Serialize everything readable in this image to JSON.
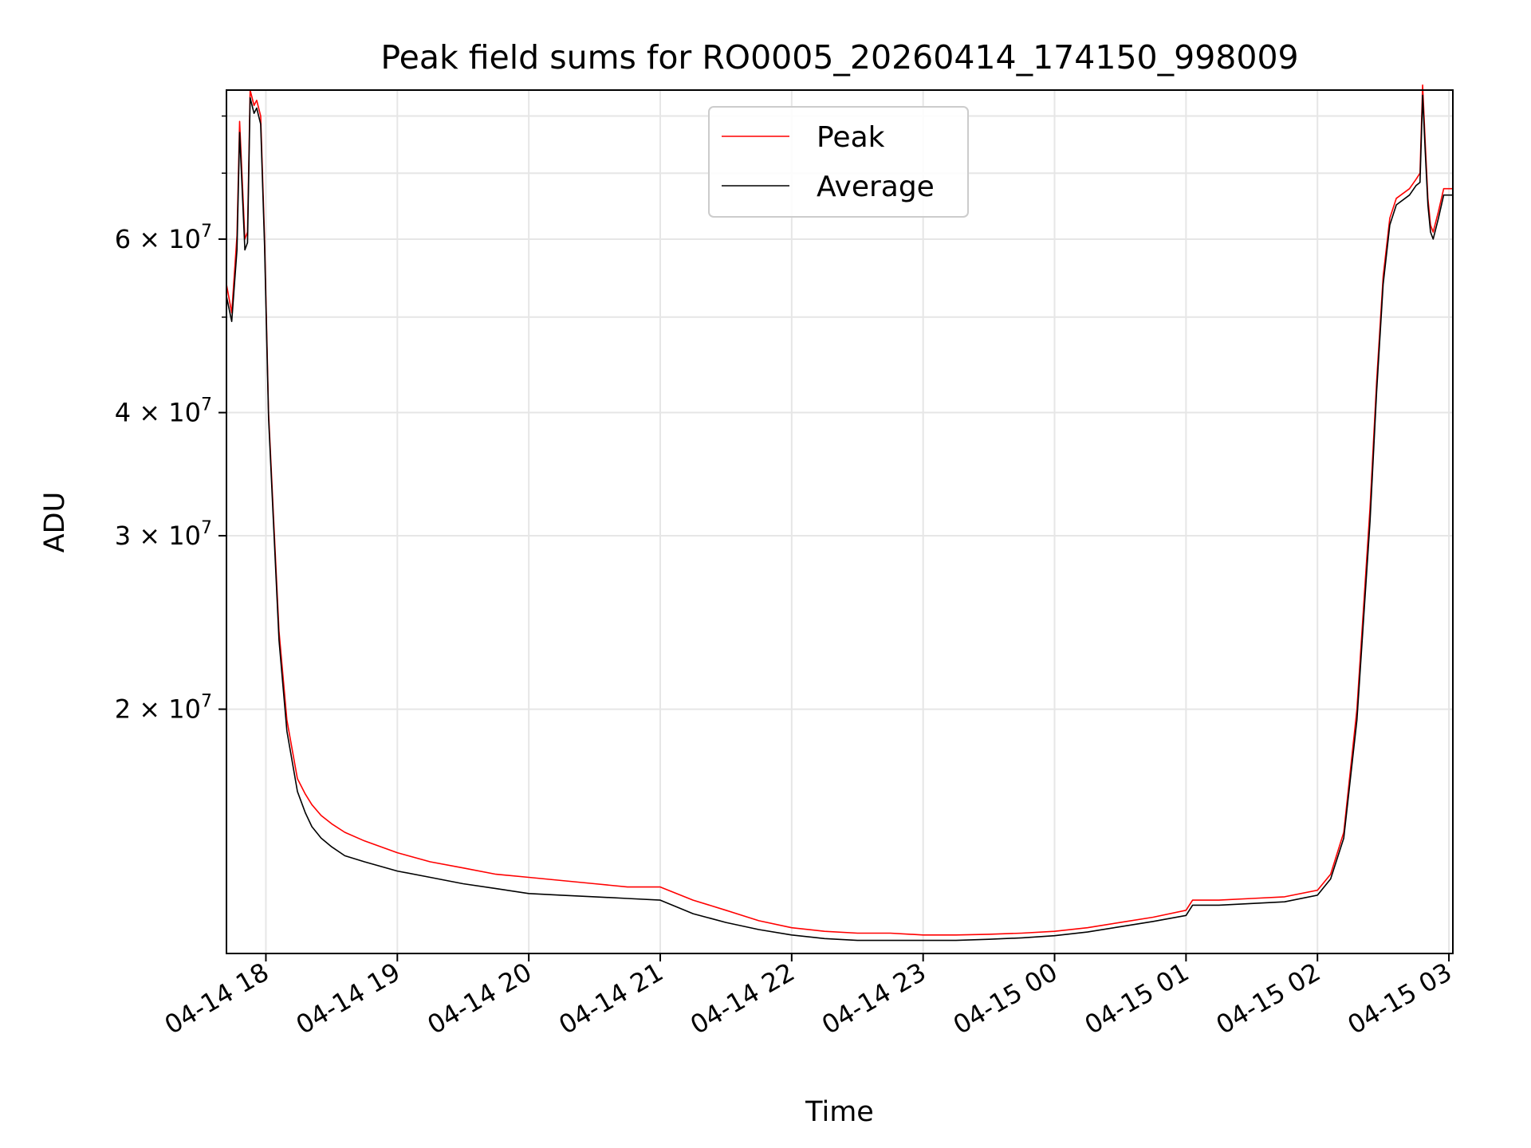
{
  "chart_data": {
    "type": "line",
    "title": "Peak field sums for RO0005_20260414_174150_998009",
    "xlabel": "Time",
    "ylabel": "ADU",
    "y_scale": "log",
    "ylim": [
      11300000,
      85000000
    ],
    "x_unit": "hours since 04-14 00:00",
    "xlim": [
      17.7,
      27.03
    ],
    "grid": true,
    "legend_position": "upper center",
    "x_ticks": [
      {
        "value": 18,
        "label": "04-14 18"
      },
      {
        "value": 19,
        "label": "04-14 19"
      },
      {
        "value": 20,
        "label": "04-14 20"
      },
      {
        "value": 21,
        "label": "04-14 21"
      },
      {
        "value": 22,
        "label": "04-14 22"
      },
      {
        "value": 23,
        "label": "04-14 23"
      },
      {
        "value": 24,
        "label": "04-15 00"
      },
      {
        "value": 25,
        "label": "04-15 01"
      },
      {
        "value": 26,
        "label": "04-15 02"
      },
      {
        "value": 27,
        "label": "04-15 03"
      }
    ],
    "y_ticks_major": [
      {
        "value": 20000000,
        "mantissa": "2",
        "exponent": "7"
      },
      {
        "value": 30000000,
        "mantissa": "3",
        "exponent": "7"
      },
      {
        "value": 40000000,
        "mantissa": "4",
        "exponent": "7"
      },
      {
        "value": 60000000,
        "mantissa": "6",
        "exponent": "7"
      }
    ],
    "y_ticks_minor": [
      50000000,
      70000000,
      80000000
    ],
    "tick_times_symbol": "×",
    "tick_base": "10",
    "series": [
      {
        "name": "Peak",
        "color": "#ff0000",
        "x": [
          17.7,
          17.74,
          17.78,
          17.8,
          17.84,
          17.86,
          17.88,
          17.91,
          17.93,
          17.96,
          17.99,
          18.02,
          18.06,
          18.1,
          18.16,
          18.24,
          18.3,
          18.35,
          18.42,
          18.5,
          18.6,
          18.75,
          19.0,
          19.25,
          19.5,
          19.75,
          20.0,
          20.25,
          20.5,
          20.75,
          21.0,
          21.25,
          21.5,
          21.75,
          22.0,
          22.25,
          22.5,
          22.75,
          23.0,
          23.25,
          23.5,
          23.75,
          24.0,
          24.25,
          24.5,
          24.75,
          25.0,
          25.05,
          25.25,
          25.5,
          25.75,
          26.0,
          26.1,
          26.2,
          26.3,
          26.4,
          26.45,
          26.5,
          26.55,
          26.6,
          26.7,
          26.75,
          26.78,
          26.8,
          26.82,
          26.84,
          26.86,
          26.88,
          26.92,
          26.96,
          27.03
        ],
        "y": [
          54000000,
          50500000,
          60500000,
          79000000,
          60000000,
          61000000,
          85000000,
          82000000,
          83000000,
          80000000,
          60000000,
          40000000,
          31000000,
          24000000,
          19500000,
          17000000,
          16400000,
          16000000,
          15600000,
          15300000,
          15000000,
          14700000,
          14300000,
          14000000,
          13800000,
          13600000,
          13500000,
          13400000,
          13300000,
          13200000,
          13200000,
          12800000,
          12500000,
          12200000,
          12000000,
          11900000,
          11850000,
          11850000,
          11800000,
          11800000,
          11820000,
          11850000,
          11900000,
          12000000,
          12150000,
          12300000,
          12500000,
          12800000,
          12800000,
          12850000,
          12900000,
          13100000,
          13600000,
          15000000,
          20000000,
          32000000,
          43000000,
          55000000,
          63000000,
          66000000,
          67500000,
          69000000,
          70000000,
          86000000,
          75000000,
          66000000,
          62000000,
          61000000,
          64000000,
          67500000,
          67500000
        ]
      },
      {
        "name": "Average",
        "color": "#000000",
        "x": [
          17.7,
          17.74,
          17.78,
          17.8,
          17.84,
          17.86,
          17.88,
          17.91,
          17.93,
          17.96,
          17.99,
          18.02,
          18.06,
          18.1,
          18.16,
          18.24,
          18.3,
          18.35,
          18.42,
          18.5,
          18.6,
          18.75,
          19.0,
          19.25,
          19.5,
          19.75,
          20.0,
          20.25,
          20.5,
          20.75,
          21.0,
          21.25,
          21.5,
          21.75,
          22.0,
          22.25,
          22.5,
          22.75,
          23.0,
          23.25,
          23.5,
          23.75,
          24.0,
          24.25,
          24.5,
          24.75,
          25.0,
          25.05,
          25.25,
          25.5,
          25.75,
          26.0,
          26.1,
          26.2,
          26.3,
          26.4,
          26.45,
          26.5,
          26.55,
          26.6,
          26.7,
          26.75,
          26.78,
          26.8,
          26.82,
          26.84,
          26.86,
          26.88,
          26.92,
          26.96,
          27.03
        ],
        "y": [
          52500000,
          49500000,
          58500000,
          77000000,
          58500000,
          59500000,
          83500000,
          80500000,
          81500000,
          78500000,
          59000000,
          39500000,
          30500000,
          23500000,
          19000000,
          16500000,
          15700000,
          15200000,
          14800000,
          14500000,
          14200000,
          14000000,
          13700000,
          13500000,
          13300000,
          13150000,
          13000000,
          12950000,
          12900000,
          12850000,
          12800000,
          12400000,
          12150000,
          11950000,
          11800000,
          11700000,
          11650000,
          11650000,
          11650000,
          11650000,
          11680000,
          11720000,
          11780000,
          11880000,
          12030000,
          12180000,
          12350000,
          12650000,
          12650000,
          12700000,
          12750000,
          12950000,
          13450000,
          14800000,
          19500000,
          31000000,
          42000000,
          54000000,
          62000000,
          65000000,
          66500000,
          68000000,
          68500000,
          84000000,
          73500000,
          65000000,
          61000000,
          60000000,
          63000000,
          66500000,
          66500000
        ]
      }
    ]
  }
}
